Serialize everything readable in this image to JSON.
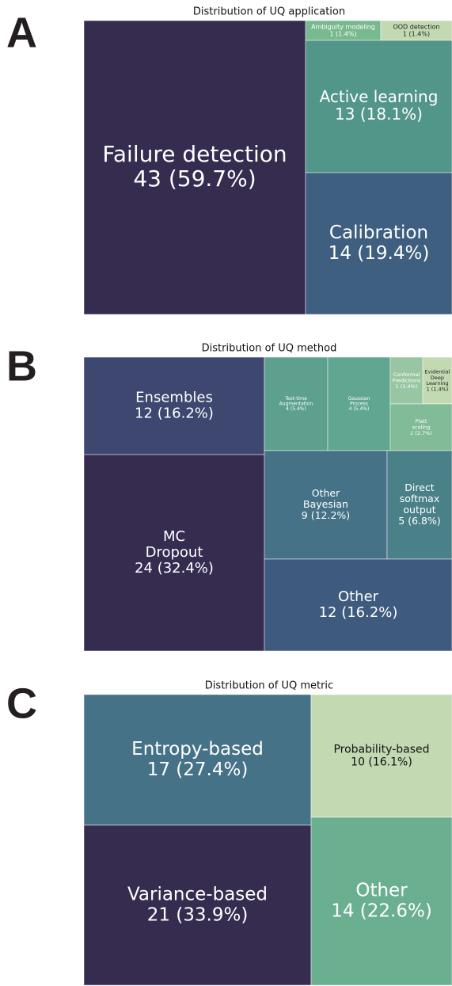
{
  "chart_data": [
    {
      "type": "treemap",
      "panel": "A",
      "title": "Distribution of UQ application",
      "categories": [
        [
          "Failure detection"
        ],
        [
          "Ambiguity modeling"
        ],
        [
          "OOD detection"
        ],
        [
          "Active learning"
        ],
        [
          "Calibration"
        ]
      ],
      "values": [
        43,
        1,
        1,
        13,
        14
      ],
      "value_labels": [
        "43 (59.7%)",
        "1 (1.4%)",
        "1 (1.4%)",
        "13 (18.1%)",
        "14 (19.4%)"
      ],
      "colors": [
        "#352c50",
        "#79b98f",
        "#c3d9b2",
        "#529589",
        "#3e5f80"
      ]
    },
    {
      "type": "treemap",
      "panel": "B",
      "title": "Distribution of UQ method",
      "categories": [
        [
          "Ensembles"
        ],
        [
          "MC",
          "Dropout"
        ],
        [
          "Test-time",
          "Augmentation"
        ],
        [
          "Gaussian",
          "Process"
        ],
        [
          "Conformal",
          "Predictions"
        ],
        [
          "Evidential",
          "Deep",
          "Learning"
        ],
        [
          "Platt",
          "scaling"
        ],
        [
          "Other",
          "Bayesian"
        ],
        [
          "Direct",
          "softmax",
          "output"
        ],
        [
          "Other"
        ]
      ],
      "values": [
        12,
        24,
        4,
        4,
        1,
        1,
        2,
        9,
        5,
        12
      ],
      "value_labels": [
        "12 (16.2%)",
        "24 (32.4%)",
        "4 (5.4%)",
        "4 (5.4%)",
        "1 (1.4%)",
        "1 (1.4%)",
        "2 (2.7%)",
        "9 (12.2%)",
        "5 (6.8%)",
        "12 (16.2%)"
      ],
      "colors": [
        "#3d4770",
        "#352c50",
        "#5ea08e",
        "#61a690",
        "#98c6a2",
        "#c3d9b2",
        "#82bb98",
        "#467287",
        "#4a8088",
        "#3e5a7e"
      ]
    },
    {
      "type": "treemap",
      "panel": "C",
      "title": "Distribution of UQ metric",
      "categories": [
        [
          "Entropy-based"
        ],
        [
          "Variance-based"
        ],
        [
          "Probability-based"
        ],
        [
          "Other"
        ]
      ],
      "values": [
        17,
        21,
        10,
        14
      ],
      "value_labels": [
        "17 (27.4%)",
        "21 (33.9%)",
        "10 (16.1%)",
        "14 (22.6%)"
      ],
      "colors": [
        "#467287",
        "#352c50",
        "#c3d9b2",
        "#6aaf8f"
      ]
    }
  ]
}
